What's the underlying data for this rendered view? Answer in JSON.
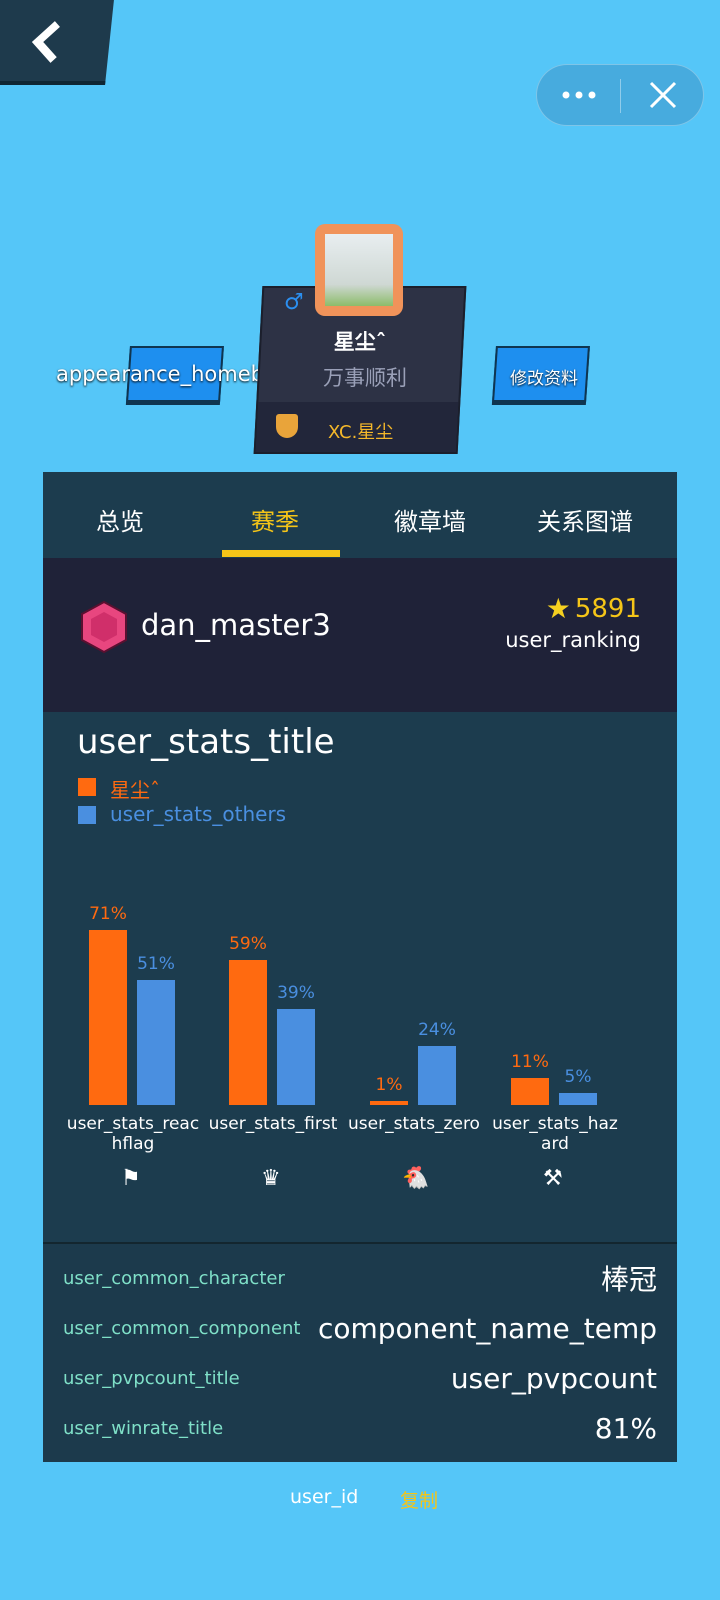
{
  "nav": {
    "back_icon": "chevron-left-icon",
    "more_icon": "ellipsis-icon",
    "close_icon": "close-icon"
  },
  "profile": {
    "gender_icon": "male-icon",
    "name": "星尘ˆ",
    "motto": "万事顺利",
    "guild": "XC.星尘",
    "left_button": "appearance_homebtn",
    "right_button": "修改资料"
  },
  "tabs": [
    {
      "label": "总览"
    },
    {
      "label": "赛季",
      "active": true
    },
    {
      "label": "徽章墙"
    },
    {
      "label": "关系图谱"
    }
  ],
  "rank": {
    "dan": "dan_master3",
    "score": "5891",
    "ranking_label": "user_ranking"
  },
  "colors": {
    "self": "#ff6a10",
    "others": "#4a8fe0",
    "accent": "#f5c518",
    "tab_underline": "#f5c518"
  },
  "chart_data": {
    "type": "bar",
    "title": "user_stats_title",
    "categories": [
      "user_stats_reachflag",
      "user_stats_first",
      "user_stats_zero",
      "user_stats_hazard"
    ],
    "category_icons": [
      "flag-icon",
      "crown-icon",
      "chicken-icon",
      "hazard-icon"
    ],
    "series": [
      {
        "name": "星尘ˆ",
        "values": [
          71,
          59,
          1,
          11
        ],
        "labels": [
          "71%",
          "59%",
          "1%",
          "11%"
        ]
      },
      {
        "name": "user_stats_others",
        "values": [
          51,
          39,
          24,
          5
        ],
        "labels": [
          "51%",
          "39%",
          "24%",
          "5%"
        ]
      }
    ],
    "ylim": [
      0,
      100
    ],
    "legend": "top-left"
  },
  "summary": [
    {
      "title": "user_common_character",
      "value": "棒冠"
    },
    {
      "title": "user_common_component",
      "value": "component_name_temp"
    },
    {
      "title": "user_pvpcount_title",
      "value": "user_pvpcount"
    },
    {
      "title": "user_winrate_title",
      "value": "81%"
    }
  ],
  "footer": {
    "user_id": "user_id",
    "copy": "复制"
  }
}
